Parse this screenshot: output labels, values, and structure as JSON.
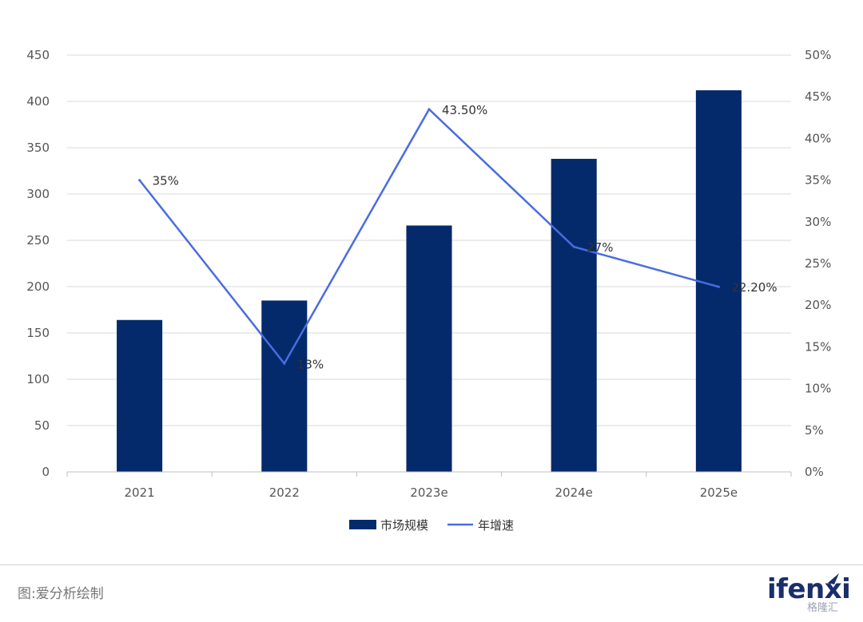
{
  "chart_data": {
    "type": "bar",
    "categories": [
      "2021",
      "2022",
      "2023e",
      "2024e",
      "2025e"
    ],
    "series": [
      {
        "name": "市场规模",
        "type": "bar",
        "axis": "left",
        "color": "#042a6b",
        "values": [
          164,
          185,
          266,
          338,
          412
        ]
      },
      {
        "name": "年增速",
        "type": "line",
        "axis": "right",
        "color": "#4a6ce0",
        "values": [
          35,
          13,
          43.5,
          27,
          22.2
        ],
        "labels": [
          "35%",
          "13%",
          "43.50%",
          "27%",
          "22.20%"
        ]
      }
    ],
    "y_left": {
      "range": [
        0,
        450
      ],
      "ticks": [
        "0",
        "50",
        "100",
        "150",
        "200",
        "250",
        "300",
        "350",
        "400",
        "450"
      ]
    },
    "y_right": {
      "range": [
        0,
        50
      ],
      "ticks": [
        "0%",
        "5%",
        "10%",
        "15%",
        "20%",
        "25%",
        "30%",
        "35%",
        "40%",
        "45%",
        "50%"
      ]
    },
    "grid": true,
    "legend_position": "bottom"
  },
  "footer": {
    "source": "图:爱分析绘制",
    "logo_text": "ifenxi",
    "watermark": "格隆汇"
  }
}
